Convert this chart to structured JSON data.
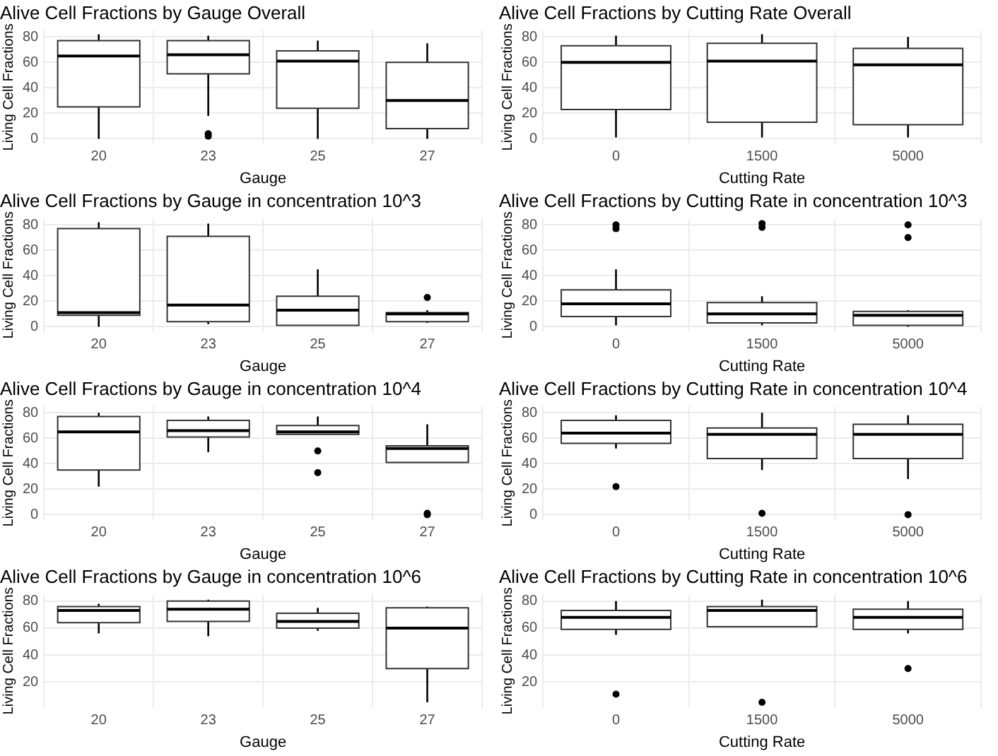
{
  "chart_data": [
    {
      "type": "box",
      "title": "Alive Cell Fractions by Gauge Overall",
      "xlabel": "Gauge",
      "ylabel": "Living Cell Fractions",
      "categories": [
        "20",
        "23",
        "25",
        "27"
      ],
      "ylim": [
        -4,
        85
      ],
      "yticks": [
        0,
        20,
        40,
        60,
        80
      ],
      "grid": true,
      "boxes": [
        {
          "low": 0,
          "q1": 25,
          "median": 65,
          "q3": 77,
          "high": 82
        },
        {
          "low": 18,
          "q1": 51,
          "median": 66,
          "q3": 77,
          "high": 81,
          "outliers": [
            2,
            4
          ]
        },
        {
          "low": 0,
          "q1": 24,
          "median": 61,
          "q3": 69,
          "high": 77
        },
        {
          "low": 0,
          "q1": 8,
          "median": 30,
          "q3": 60,
          "high": 75
        }
      ]
    },
    {
      "type": "box",
      "title": "Alive Cell Fractions by Cutting Rate Overall",
      "xlabel": "Cutting Rate",
      "ylabel": "Living Cell Fractions",
      "categories": [
        "0",
        "1500",
        "5000"
      ],
      "ylim": [
        -4,
        85
      ],
      "yticks": [
        0,
        20,
        40,
        60,
        80
      ],
      "grid": true,
      "boxes": [
        {
          "low": 1,
          "q1": 23,
          "median": 60,
          "q3": 73,
          "high": 81
        },
        {
          "low": 1,
          "q1": 13,
          "median": 61,
          "q3": 75,
          "high": 82
        },
        {
          "low": 1,
          "q1": 11,
          "median": 58,
          "q3": 71,
          "high": 80
        }
      ]
    },
    {
      "type": "box",
      "title": "Alive Cell Fractions by Gauge in concentration 10^3",
      "xlabel": "Gauge",
      "ylabel": "Living Cell Fractions",
      "categories": [
        "20",
        "23",
        "25",
        "27"
      ],
      "ylim": [
        -4,
        85
      ],
      "yticks": [
        0,
        20,
        40,
        60,
        80
      ],
      "grid": true,
      "boxes": [
        {
          "low": 0,
          "q1": 9,
          "median": 11,
          "q3": 77,
          "high": 82
        },
        {
          "low": 2,
          "q1": 4,
          "median": 17,
          "q3": 71,
          "high": 81
        },
        {
          "low": 1,
          "q1": 1,
          "median": 13,
          "q3": 24,
          "high": 45
        },
        {
          "low": 3,
          "q1": 4,
          "median": 10,
          "q3": 11,
          "high": 13,
          "outliers": [
            23
          ]
        }
      ]
    },
    {
      "type": "box",
      "title": "Alive Cell Fractions by Cutting Rate in concentration 10^3",
      "xlabel": "Cutting Rate",
      "ylabel": "Living Cell Fractions",
      "categories": [
        "0",
        "1500",
        "5000"
      ],
      "ylim": [
        -4,
        85
      ],
      "yticks": [
        0,
        20,
        40,
        60,
        80
      ],
      "grid": true,
      "boxes": [
        {
          "low": 1,
          "q1": 8,
          "median": 18,
          "q3": 29,
          "high": 45,
          "outliers": [
            77,
            80
          ]
        },
        {
          "low": 1,
          "q1": 3,
          "median": 10,
          "q3": 19,
          "high": 24,
          "outliers": [
            78,
            81
          ]
        },
        {
          "low": 0,
          "q1": 1,
          "median": 9,
          "q3": 12,
          "high": 13,
          "outliers": [
            70,
            80
          ]
        }
      ]
    },
    {
      "type": "box",
      "title": "Alive Cell Fractions by Gauge in concentration 10^4",
      "xlabel": "Gauge",
      "ylabel": "Living Cell Fractions",
      "categories": [
        "20",
        "23",
        "25",
        "27"
      ],
      "ylim": [
        -4,
        85
      ],
      "yticks": [
        0,
        20,
        40,
        60,
        80
      ],
      "grid": true,
      "boxes": [
        {
          "low": 22,
          "q1": 35,
          "median": 65,
          "q3": 77,
          "high": 80
        },
        {
          "low": 49,
          "q1": 61,
          "median": 66,
          "q3": 74,
          "high": 77
        },
        {
          "low": 63,
          "q1": 63,
          "median": 65,
          "q3": 70,
          "high": 77,
          "outliers": [
            50,
            33
          ]
        },
        {
          "low": 41,
          "q1": 41,
          "median": 52,
          "q3": 54,
          "high": 71,
          "outliers": [
            0,
            1
          ]
        }
      ]
    },
    {
      "type": "box",
      "title": "Alive Cell Fractions by Cutting Rate in concentration 10^4",
      "xlabel": "Cutting Rate",
      "ylabel": "Living Cell Fractions",
      "categories": [
        "0",
        "1500",
        "5000"
      ],
      "ylim": [
        -4,
        85
      ],
      "yticks": [
        0,
        20,
        40,
        60,
        80
      ],
      "grid": true,
      "boxes": [
        {
          "low": 52,
          "q1": 56,
          "median": 64,
          "q3": 74,
          "high": 78,
          "outliers": [
            22
          ]
        },
        {
          "low": 35,
          "q1": 44,
          "median": 63,
          "q3": 68,
          "high": 80,
          "outliers": [
            1
          ]
        },
        {
          "low": 28,
          "q1": 44,
          "median": 63,
          "q3": 71,
          "high": 78,
          "outliers": [
            0
          ]
        }
      ]
    },
    {
      "type": "box",
      "title": "Alive Cell Fractions by Gauge in concentration 10^6",
      "xlabel": "Gauge",
      "ylabel": "Living Cell Fractions",
      "categories": [
        "20",
        "23",
        "25",
        "27"
      ],
      "ylim": [
        1,
        85
      ],
      "yticks": [
        20,
        40,
        60,
        80
      ],
      "grid": true,
      "boxes": [
        {
          "low": 56,
          "q1": 64,
          "median": 73,
          "q3": 76,
          "high": 78
        },
        {
          "low": 54,
          "q1": 65,
          "median": 74,
          "q3": 80,
          "high": 81
        },
        {
          "low": 58,
          "q1": 60,
          "median": 65,
          "q3": 71,
          "high": 75
        },
        {
          "low": 5,
          "q1": 30,
          "median": 60,
          "q3": 75,
          "high": 76
        }
      ]
    },
    {
      "type": "box",
      "title": "Alive Cell Fractions by Cutting Rate in concentration 10^6",
      "xlabel": "Cutting Rate",
      "ylabel": "Living Cell Fractions",
      "categories": [
        "0",
        "1500",
        "5000"
      ],
      "ylim": [
        1,
        85
      ],
      "yticks": [
        20,
        40,
        60,
        80
      ],
      "grid": true,
      "boxes": [
        {
          "low": 55,
          "q1": 59,
          "median": 68,
          "q3": 73,
          "high": 80,
          "outliers": [
            11
          ]
        },
        {
          "low": 61,
          "q1": 61,
          "median": 73,
          "q3": 76,
          "high": 81,
          "outliers": [
            5
          ]
        },
        {
          "low": 56,
          "q1": 59,
          "median": 68,
          "q3": 74,
          "high": 80,
          "outliers": [
            30
          ]
        }
      ]
    }
  ]
}
